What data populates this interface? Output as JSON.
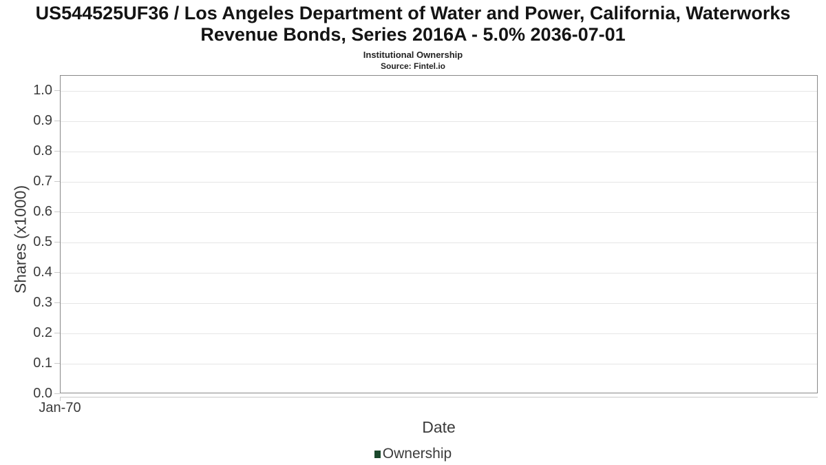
{
  "chart_data": {
    "type": "line",
    "title": "US544525UF36 / Los Angeles Department of Water and Power, California, Waterworks Revenue Bonds, Series 2016A - 5.0% 2036-07-01",
    "subtitle": "Institutional Ownership",
    "source": "Source: Fintel.io",
    "xlabel": "Date",
    "ylabel": "Shares (x1000)",
    "yticks": [
      "1.0",
      "0.9",
      "0.8",
      "0.7",
      "0.6",
      "0.5",
      "0.4",
      "0.3",
      "0.2",
      "0.1",
      "0.0"
    ],
    "ylim": [
      0.0,
      1.05
    ],
    "xticks": [
      "Jan-70"
    ],
    "grid": true,
    "legend_position": "bottom",
    "series": [
      {
        "name": "Ownership",
        "color": "#1b482c",
        "x": [],
        "values": []
      }
    ]
  }
}
